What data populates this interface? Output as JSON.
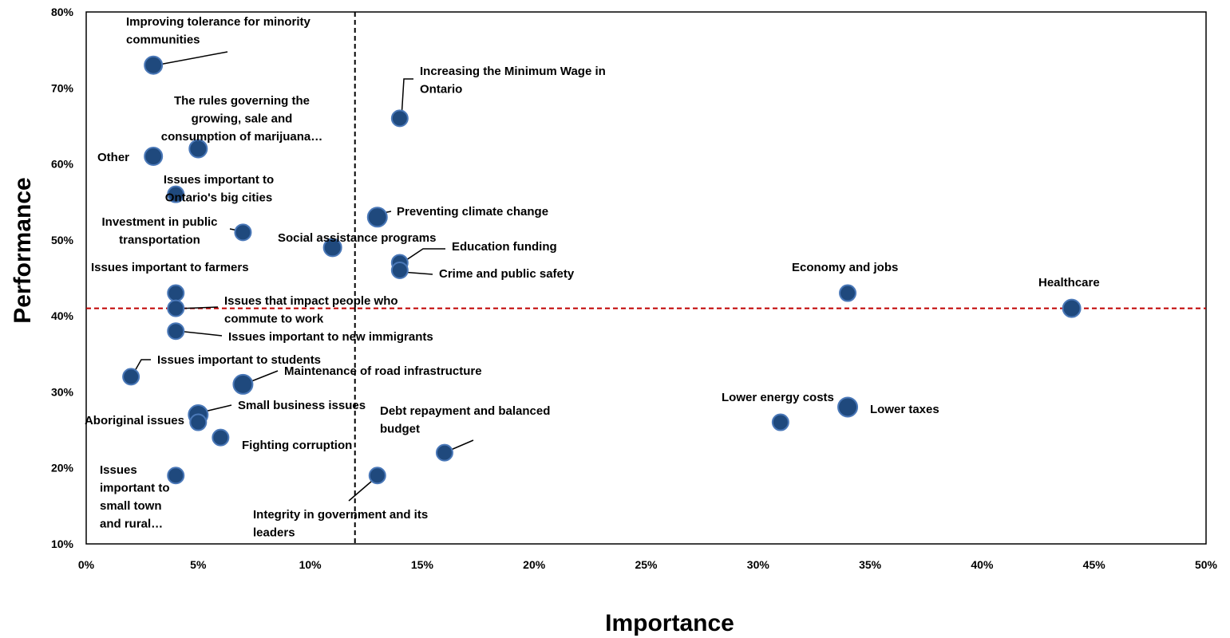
{
  "chart_data": {
    "type": "scatter",
    "xlabel": "Importance",
    "ylabel": "Performance",
    "xlim": [
      0,
      50
    ],
    "ylim": [
      10,
      80
    ],
    "x_ticks": [
      "0%",
      "5%",
      "10%",
      "15%",
      "20%",
      "25%",
      "30%",
      "35%",
      "40%",
      "45%",
      "50%"
    ],
    "y_ticks": [
      "10%",
      "20%",
      "30%",
      "40%",
      "50%",
      "60%",
      "70%",
      "80%"
    ],
    "reference_lines": {
      "vertical_x": 12,
      "horizontal_y": 41,
      "vertical_color": "#000000",
      "horizontal_color": "#c00000"
    },
    "marker_color": "#1f497d",
    "marker_highlight_color": "#4a78b8",
    "points": [
      {
        "label": [
          "Improving tolerance for minority",
          "communities"
        ],
        "x": 3,
        "y": 73
      },
      {
        "label": [
          "Increasing the Minimum Wage in",
          "Ontario"
        ],
        "x": 14,
        "y": 66
      },
      {
        "label": [
          "The rules governing the",
          "growing, sale and",
          "consumption of marijuana…"
        ],
        "x": 5,
        "y": 62
      },
      {
        "label": [
          "Other"
        ],
        "x": 3,
        "y": 61
      },
      {
        "label": [
          "Issues important to",
          "Ontario's big cities"
        ],
        "x": 4,
        "y": 56
      },
      {
        "label": [
          "Preventing climate change"
        ],
        "x": 13,
        "y": 53
      },
      {
        "label": [
          "Investment in public",
          "transportation"
        ],
        "x": 7,
        "y": 51
      },
      {
        "label": [
          "Social assistance programs"
        ],
        "x": 11,
        "y": 49
      },
      {
        "label": [
          "Education funding"
        ],
        "x": 14,
        "y": 47
      },
      {
        "label": [
          "Crime and public safety"
        ],
        "x": 14,
        "y": 46
      },
      {
        "label": [
          "Issues important to farmers"
        ],
        "x": 4,
        "y": 43
      },
      {
        "label": [
          "Economy and jobs"
        ],
        "x": 34,
        "y": 43
      },
      {
        "label": [
          "Issues that impact people who",
          "commute to work"
        ],
        "x": 4,
        "y": 41
      },
      {
        "label": [
          "Healthcare"
        ],
        "x": 44,
        "y": 41
      },
      {
        "label": [
          "Issues important to new immigrants"
        ],
        "x": 4,
        "y": 38
      },
      {
        "label": [
          "Issues important to students"
        ],
        "x": 2,
        "y": 32
      },
      {
        "label": [
          "Maintenance of road infrastructure"
        ],
        "x": 7,
        "y": 31
      },
      {
        "label": [
          "Lower taxes"
        ],
        "x": 34,
        "y": 28
      },
      {
        "label": [
          "Small business issues"
        ],
        "x": 5,
        "y": 27
      },
      {
        "label": [
          "Aboriginal issues"
        ],
        "x": 5,
        "y": 26
      },
      {
        "label": [
          "Lower energy costs"
        ],
        "x": 31,
        "y": 26
      },
      {
        "label": [
          "Fighting corruption"
        ],
        "x": 6,
        "y": 24
      },
      {
        "label": [
          "Debt repayment and balanced",
          "budget"
        ],
        "x": 16,
        "y": 22
      },
      {
        "label": [
          "Issues",
          "important to",
          "small town",
          "and rural…"
        ],
        "x": 4,
        "y": 19
      },
      {
        "label": [
          "Integrity in government and its",
          "leaders"
        ],
        "x": 13,
        "y": 19
      }
    ]
  }
}
